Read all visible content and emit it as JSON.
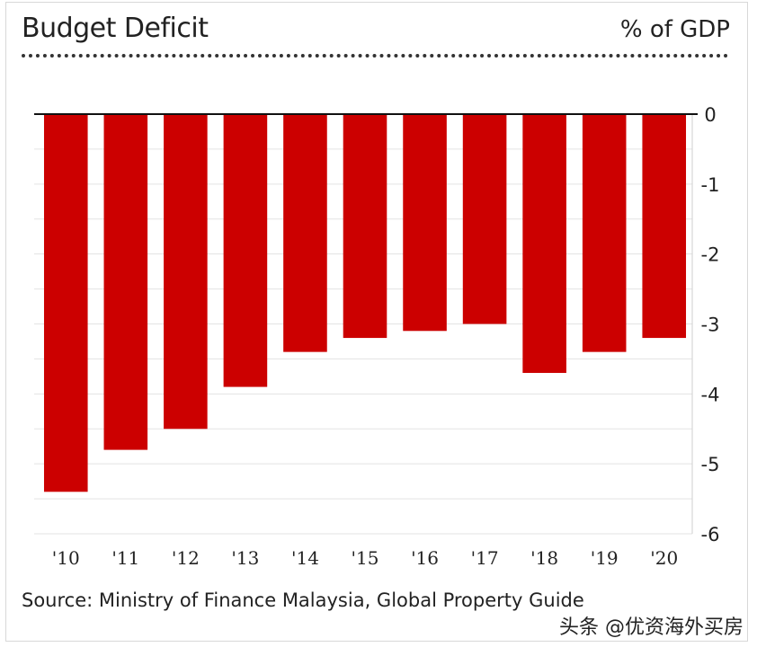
{
  "header": {
    "title": "Budget Deficit",
    "unit_label": "% of GDP"
  },
  "footer": {
    "source": "Source: Ministry of Finance Malaysia, Global Property Guide",
    "watermark": "头条 @优资海外买房"
  },
  "colors": {
    "bar": "#cc0000",
    "zero_line": "#111111",
    "grid": "#e3e3e3",
    "tick_text": "#222222"
  },
  "chart_data": {
    "type": "bar",
    "title": "Budget Deficit",
    "ylabel": "% of GDP",
    "xlabel": "",
    "categories": [
      "'10",
      "'11",
      "'12",
      "'13",
      "'14",
      "'15",
      "'16",
      "'17",
      "'18",
      "'19",
      "'20"
    ],
    "values": [
      -5.4,
      -4.8,
      -4.5,
      -3.9,
      -3.4,
      -3.2,
      -3.1,
      -3.0,
      -3.7,
      -3.4,
      -3.2
    ],
    "ylim": [
      -6,
      0
    ],
    "yticks": [
      0,
      -1,
      -2,
      -3,
      -4,
      -5,
      -6
    ],
    "y_axis_side": "right",
    "grid": true
  }
}
